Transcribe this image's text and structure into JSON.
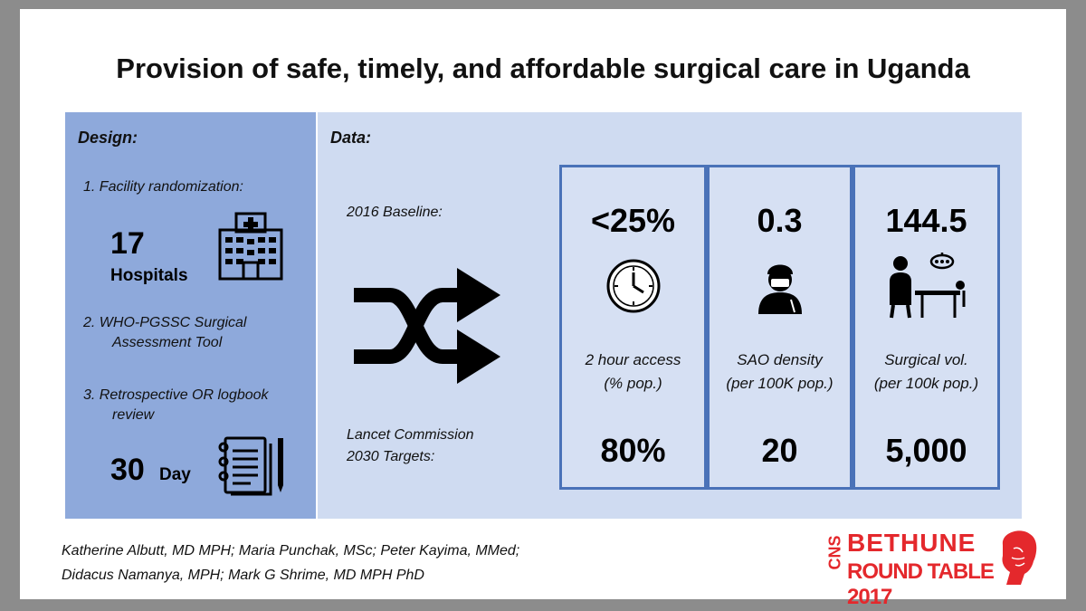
{
  "title": "Provision of safe, timely, and affordable surgical care in Uganda",
  "design": {
    "heading": "Design:",
    "item1": "1.  Facility randomization:",
    "hospitals_count": "17",
    "hospitals_label": "Hospitals",
    "item2_line1": "2.  WHO-PGSSC Surgical",
    "item2_line2": "Assessment Tool",
    "item3_line1": "3.  Retrospective OR logbook",
    "item3_line2": "review",
    "days_count": "30",
    "days_label": "Day"
  },
  "data": {
    "heading": "Data:",
    "baseline_label": "2016 Baseline:",
    "targets_line1": "Lancet Commission",
    "targets_line2": "2030 Targets:",
    "metrics": [
      {
        "baseline": "<25%",
        "label_line1": "2 hour access",
        "label_line2": "(% pop.)",
        "target": "80%",
        "icon": "clock-icon"
      },
      {
        "baseline": "0.3",
        "label_line1": "SAO density",
        "label_line2": "(per 100K pop.)",
        "target": "20",
        "icon": "surgeon-icon"
      },
      {
        "baseline": "144.5",
        "label_line1": "Surgical vol.",
        "label_line2": "(per 100k pop.)",
        "target": "5,000",
        "icon": "operating-room-icon"
      }
    ]
  },
  "authors": {
    "line1": "Katherine Albutt, MD MPH; Maria Punchak, MSc; Peter Kayima, MMed;",
    "line2": "Didacus Namanya, MPH; Mark G Shrime, MD MPH PhD"
  },
  "logo": {
    "side": "CNS",
    "line1": "BETHUNE",
    "line2": "ROUND TABLE 2017"
  },
  "colors": {
    "design_panel": "#8ea9db",
    "data_panel": "#cfdbf1",
    "box_border": "#4a72b8",
    "logo_red": "#e4282c"
  }
}
